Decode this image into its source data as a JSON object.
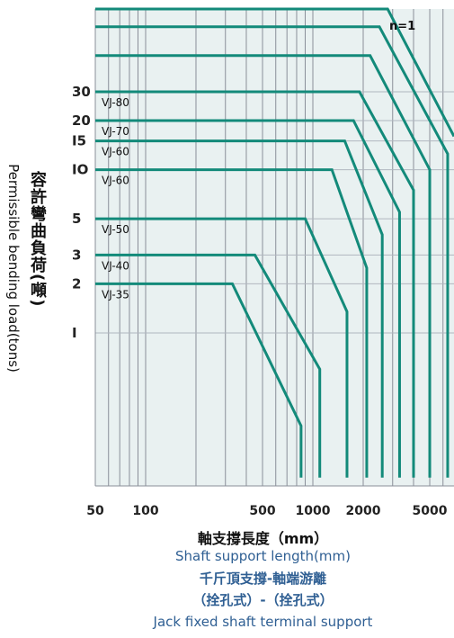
{
  "chart_data": {
    "type": "line",
    "title": "",
    "xscale": "log",
    "yscale": "log",
    "xlim": [
      50,
      8000
    ],
    "x_ticks": [
      {
        "value": 50,
        "label": "50"
      },
      {
        "value": 100,
        "label": "100"
      },
      {
        "value": 500,
        "label": "500"
      },
      {
        "value": 1000,
        "label": "1000"
      },
      {
        "value": 2000,
        "label": "2000"
      },
      {
        "value": 5000,
        "label": "5000"
      }
    ],
    "y_ticks": [
      {
        "value": 1,
        "label": "I"
      },
      {
        "value": 2,
        "label": "2"
      },
      {
        "value": 3,
        "label": "3"
      },
      {
        "value": 5,
        "label": "5"
      },
      {
        "value": 10,
        "label": "IO"
      },
      {
        "value": 15,
        "label": "I5"
      },
      {
        "value": 20,
        "label": "20"
      },
      {
        "value": 30,
        "label": "30"
      }
    ],
    "annotation": "n=1",
    "series": [
      {
        "name": "VJ-35",
        "points": [
          [
            50,
            2
          ],
          [
            330,
            2
          ],
          [
            850,
            0.27
          ],
          [
            850,
            0.13
          ]
        ]
      },
      {
        "name": "VJ-40",
        "points": [
          [
            50,
            3
          ],
          [
            450,
            3
          ],
          [
            1100,
            0.6
          ],
          [
            1100,
            0.13
          ]
        ]
      },
      {
        "name": "VJ-50",
        "points": [
          [
            50,
            5
          ],
          [
            900,
            5
          ],
          [
            1600,
            1.35
          ],
          [
            1600,
            0.13
          ]
        ]
      },
      {
        "name": "VJ-60",
        "points": [
          [
            50,
            10
          ],
          [
            1300,
            10
          ],
          [
            2100,
            2.5
          ],
          [
            2100,
            0.13
          ]
        ]
      },
      {
        "name": "VJ-60",
        "points": [
          [
            50,
            15
          ],
          [
            1550,
            15
          ],
          [
            2600,
            4
          ],
          [
            2600,
            0.13
          ]
        ]
      },
      {
        "name": "VJ-70",
        "points": [
          [
            50,
            20
          ],
          [
            1750,
            20
          ],
          [
            3300,
            5.5
          ],
          [
            3300,
            0.13
          ]
        ]
      },
      {
        "name": "VJ-80",
        "points": [
          [
            50,
            30
          ],
          [
            1900,
            30
          ],
          [
            4000,
            7.5
          ],
          [
            4000,
            0.13
          ]
        ]
      },
      {
        "name": "",
        "points": [
          [
            50,
            50
          ],
          [
            2200,
            50
          ],
          [
            5000,
            10
          ],
          [
            5000,
            0.13
          ]
        ]
      },
      {
        "name": "",
        "points": [
          [
            50,
            75
          ],
          [
            2500,
            75
          ],
          [
            6400,
            12.5
          ],
          [
            6400,
            0.13
          ]
        ]
      },
      {
        "name": "",
        "points": [
          [
            50,
            110
          ],
          [
            2800,
            110
          ],
          [
            8000,
            16
          ]
        ]
      }
    ],
    "ylabel_zh": "容許彎曲負荷(噸)",
    "ylabel_en": "Permissible bending load(tons)",
    "xlabel_zh": "軸支撐長度（mm）",
    "xlabel_en": "Shaft support length(mm)",
    "caption_zh_1": "千斤頂支撐-軸端游離",
    "caption_zh_2": "（拴孔式）-（拴孔式）",
    "caption_en": "Jack fixed shaft terminal support",
    "curve_color": "#138a7a",
    "plot_bg_color": "#e9f1f1",
    "caption_blue": "#2f5f93"
  }
}
